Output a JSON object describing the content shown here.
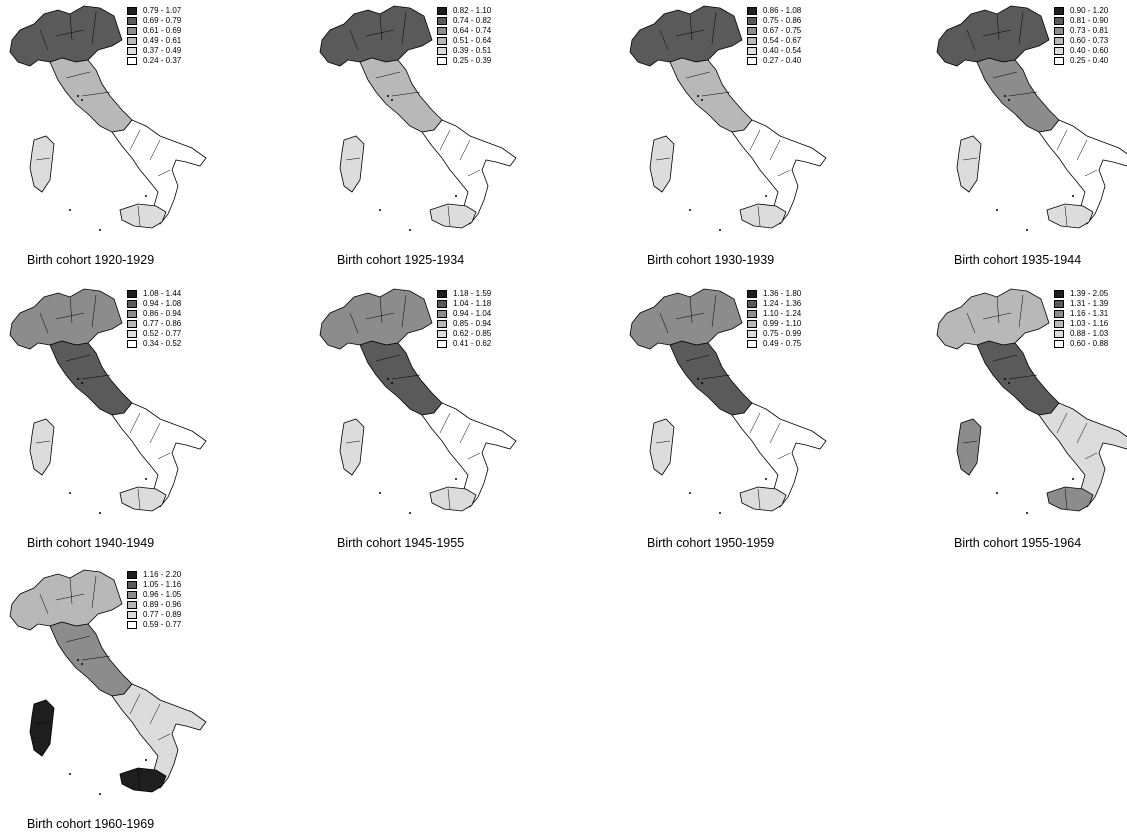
{
  "legend_colors": [
    "#1e1e1e",
    "#5a5a5a",
    "#8c8c8c",
    "#b8b8b8",
    "#dcdcdc",
    "#ffffff"
  ],
  "panels": [
    {
      "title": "Birth cohort 1920-1929",
      "legend": [
        "0.79 - 1.07",
        "0.69 - 0.79",
        "0.61 - 0.69",
        "0.49 - 0.61",
        "0.37 - 0.49",
        "0.24 - 0.37"
      ],
      "north_shade": 1,
      "center_shade": 3,
      "south_shade": 5,
      "islands_shade": 4
    },
    {
      "title": "Birth cohort 1925-1934",
      "legend": [
        "0.82 - 1.10",
        "0.74 - 0.82",
        "0.64 - 0.74",
        "0.51 - 0.64",
        "0.39 - 0.51",
        "0.25 - 0.39"
      ],
      "north_shade": 1,
      "center_shade": 3,
      "south_shade": 5,
      "islands_shade": 4
    },
    {
      "title": "Birth cohort 1930-1939",
      "legend": [
        "0.86 - 1.08",
        "0.75 - 0.86",
        "0.67 - 0.75",
        "0.54 - 0.67",
        "0.40 - 0.54",
        "0.27 - 0.40"
      ],
      "north_shade": 1,
      "center_shade": 3,
      "south_shade": 5,
      "islands_shade": 4
    },
    {
      "title": "Birth cohort 1935-1944",
      "legend": [
        "0.90 - 1.20",
        "0.81 - 0.90",
        "0.73 - 0.81",
        "0.60 - 0.73",
        "0.40 - 0.60",
        "0.25 - 0.40"
      ],
      "north_shade": 1,
      "center_shade": 2,
      "south_shade": 5,
      "islands_shade": 4
    },
    {
      "title": "Birth cohort 1940-1949",
      "legend": [
        "1.08 - 1.44",
        "0.94 - 1.08",
        "0.86 - 0.94",
        "0.77 - 0.86",
        "0.52 - 0.77",
        "0.34 - 0.52"
      ],
      "north_shade": 2,
      "center_shade": 1,
      "south_shade": 5,
      "islands_shade": 4
    },
    {
      "title": "Birth cohort 1945-1955",
      "legend": [
        "1.18 - 1.59",
        "1.04 - 1.18",
        "0.94 - 1.04",
        "0.85 - 0.94",
        "0.62 - 0.85",
        "0.41 - 0.62"
      ],
      "north_shade": 2,
      "center_shade": 1,
      "south_shade": 5,
      "islands_shade": 4
    },
    {
      "title": "Birth cohort 1950-1959",
      "legend": [
        "1.36 - 1.80",
        "1.24 - 1.36",
        "1.10 - 1.24",
        "0.99 - 1.10",
        "0.75 - 0.99",
        "0.49 - 0.75"
      ],
      "north_shade": 2,
      "center_shade": 1,
      "south_shade": 5,
      "islands_shade": 4
    },
    {
      "title": "Birth cohort 1955-1964",
      "legend": [
        "1.39 - 2.05",
        "1.31 - 1.39",
        "1.16 - 1.31",
        "1.03 - 1.16",
        "0.88 - 1.03",
        "0.60 - 0.88"
      ],
      "north_shade": 3,
      "center_shade": 1,
      "south_shade": 4,
      "islands_shade": 2
    },
    {
      "title": "Birth cohort 1960-1969",
      "legend": [
        "1.16 - 2.20",
        "1.05 - 1.16",
        "0.96 - 1.05",
        "0.89 - 0.96",
        "0.77 - 0.89",
        "0.59 - 0.77"
      ],
      "north_shade": 3,
      "center_shade": 2,
      "south_shade": 4,
      "islands_shade": 0
    }
  ]
}
